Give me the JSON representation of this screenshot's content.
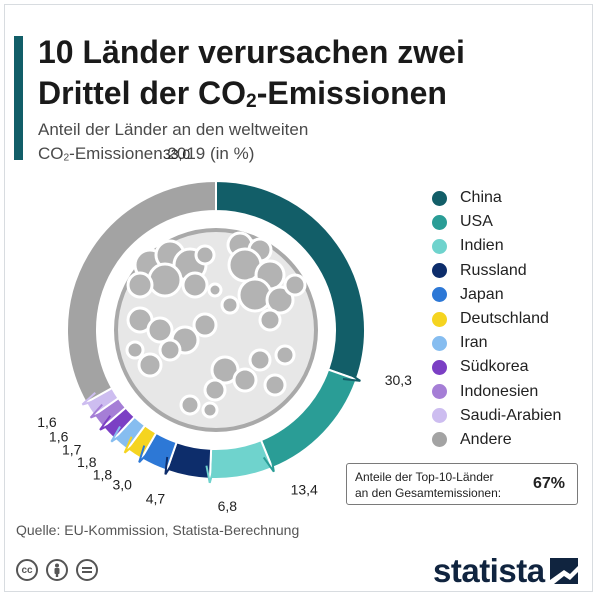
{
  "header": {
    "title_line1": "10 Länder verursachen zwei",
    "title_line2_pre": "Drittel der CO",
    "title_line2_sub": "2",
    "title_line2_post": "-Emissionen",
    "subtitle_line1": "Anteil der Länder an den weltweiten",
    "subtitle_line2_pre": "CO",
    "subtitle_line2_sub": "2",
    "subtitle_line2_post": "-Emissionen 2019 (in %)"
  },
  "chart_data": {
    "type": "pie",
    "categories": [
      "China",
      "USA",
      "Indien",
      "Russland",
      "Japan",
      "Deutschland",
      "Iran",
      "Südkorea",
      "Indonesien",
      "Saudi-Arabien",
      "Andere"
    ],
    "values": [
      30.3,
      13.4,
      6.8,
      4.7,
      3.0,
      1.8,
      1.8,
      1.7,
      1.6,
      1.6,
      33.0
    ],
    "value_labels": [
      "30,3",
      "13,4",
      "6,8",
      "4,7",
      "3,0",
      "1,8",
      "1,8",
      "1,7",
      "1,6",
      "1,6",
      "33,0"
    ],
    "colors": [
      "#125e68",
      "#2a9d96",
      "#6fd3cd",
      "#0d2d6b",
      "#2d78d6",
      "#f5d420",
      "#86bdf0",
      "#7b3fc4",
      "#a57ed6",
      "#cdbdf0",
      "#a3a3a3"
    ],
    "legend_position": "right",
    "style": "donut"
  },
  "summary": {
    "label_line1": "Anteile der Top-10-Länder",
    "label_line2": "an den Gesamtemissionen:",
    "value": "67%"
  },
  "footer": {
    "source": "Quelle: EU-Kommission, Statista-Berechnung",
    "license_icons": [
      "cc-icon",
      "attribution-icon",
      "no-derivatives-icon"
    ],
    "brand": "statista"
  }
}
